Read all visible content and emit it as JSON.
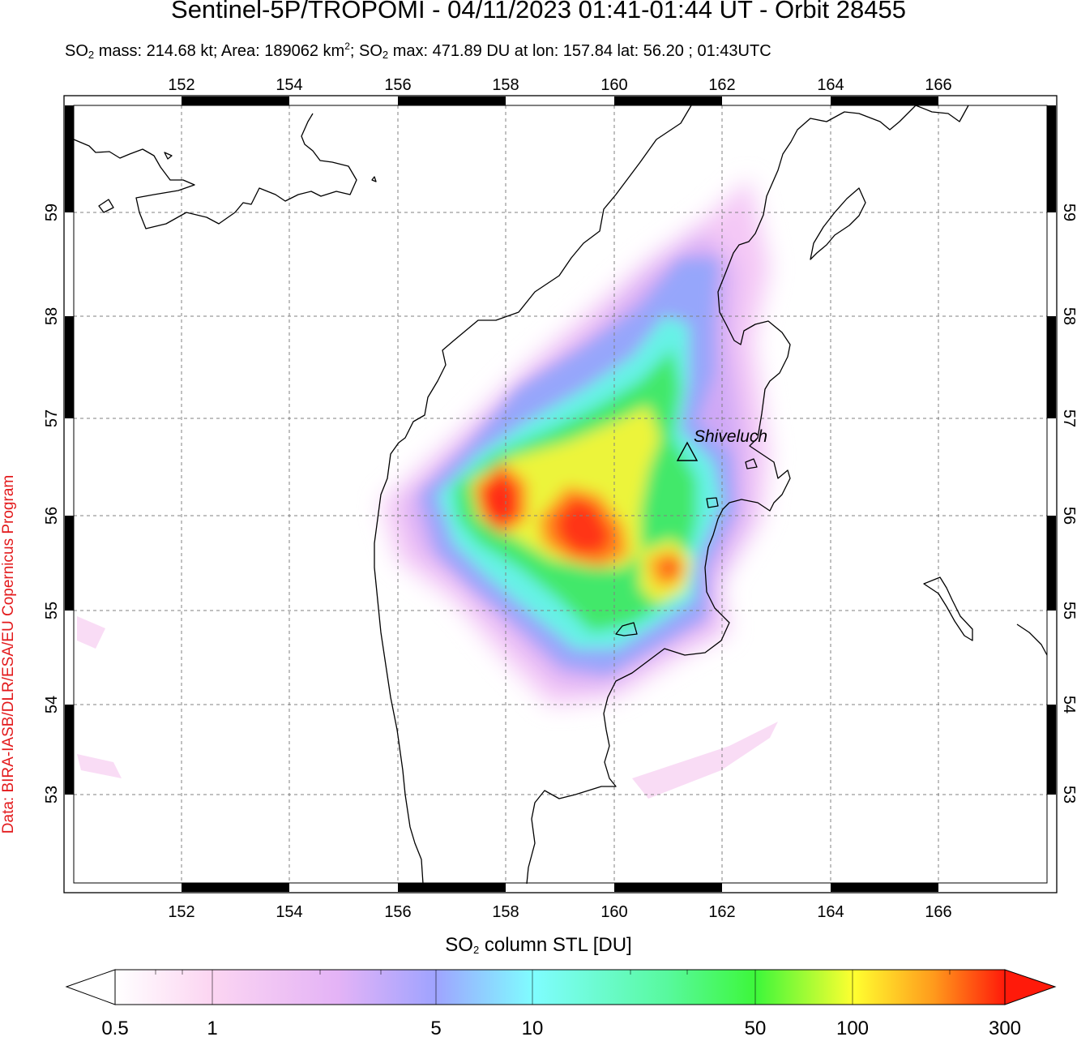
{
  "header": {
    "title": "Sentinel-5P/TROPOMI - 04/11/2023 01:41-01:44 UT - Orbit 28455",
    "subtitle_parts": {
      "p1": "SO",
      "p1_sub": "2",
      "p2": " mass: 214.68 kt; Area: 189062 km",
      "p2_sup": "2",
      "p3": "; SO",
      "p3_sub": "2",
      "p4": " max: 471.89 DU at lon: 157.84 lat: 56.20 ; 01:43UTC"
    }
  },
  "credit": "Data: BIRA-IASB/DLR/ESA/EU Copernicus Program",
  "map": {
    "lon_ticks": [
      "152",
      "154",
      "156",
      "158",
      "160",
      "162",
      "164",
      "166"
    ],
    "lat_ticks": [
      "59",
      "58",
      "57",
      "56",
      "55",
      "54",
      "53"
    ],
    "volcano_label": "Shiveluch",
    "colors": {
      "frame": "#000000",
      "grid": "#808080",
      "coast": "#000000"
    }
  },
  "colorbar": {
    "title_p1": "SO",
    "title_sub": "2",
    "title_p2": " column STL [DU]",
    "tick_labels": [
      "0.5",
      "1",
      "5",
      "10",
      "50",
      "100",
      "300"
    ],
    "stops": [
      "#ffffff",
      "#fcd6f2",
      "#d9a9f6",
      "#9fa3ff",
      "#7ffdff",
      "#3df76a",
      "#ffff30",
      "#ff8c18",
      "#ff1a0a"
    ]
  }
}
